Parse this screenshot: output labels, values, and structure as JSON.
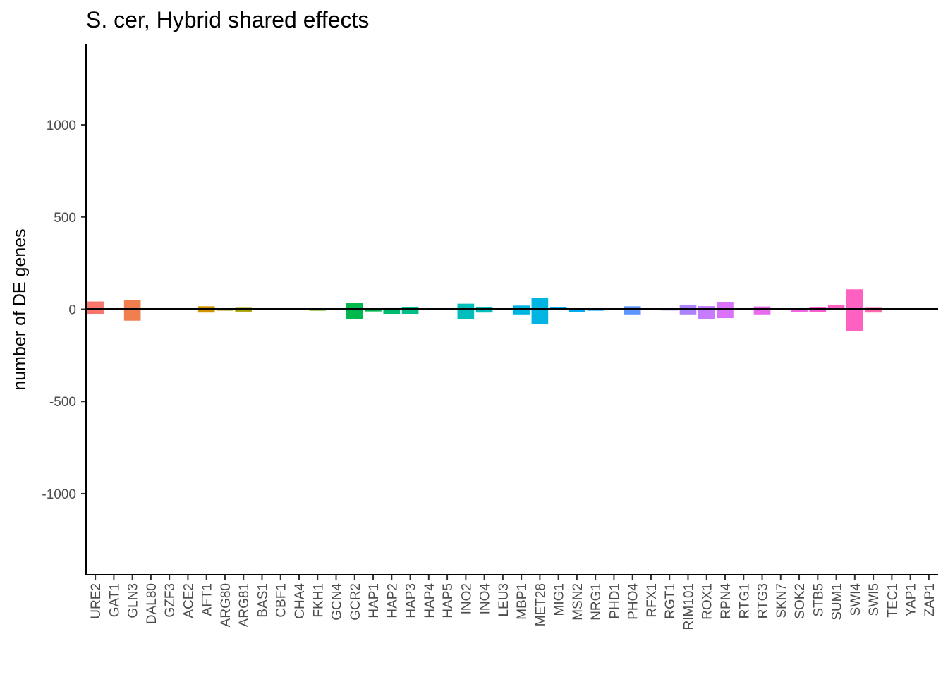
{
  "chart_data": {
    "type": "bar",
    "title": "S. cer, Hybrid shared effects",
    "xlabel": "",
    "ylabel": "number of DE genes",
    "ylim": [
      -1440,
      1440
    ],
    "yticks": [
      -1000,
      -500,
      0,
      500,
      1000
    ],
    "grid": false,
    "legend": "none",
    "categories": [
      "URE2",
      "GAT1",
      "GLN3",
      "DAL80",
      "GZF3",
      "ACE2",
      "AFT1",
      "ARG80",
      "ARG81",
      "BAS1",
      "CBF1",
      "CHA4",
      "FKH1",
      "GCN4",
      "GCR2",
      "HAP1",
      "HAP2",
      "HAP3",
      "HAP4",
      "HAP5",
      "INO2",
      "INO4",
      "LEU3",
      "MBP1",
      "MET28",
      "MIG1",
      "MSN2",
      "NRG1",
      "PHD1",
      "PHO4",
      "RFX1",
      "RGT1",
      "RIM101",
      "ROX1",
      "RPN4",
      "RTG1",
      "RTG3",
      "SKN7",
      "SOK2",
      "STB5",
      "SUM1",
      "SWI4",
      "SWI5",
      "TEC1",
      "YAP1",
      "ZAP1"
    ],
    "series": [
      {
        "values": [
          42,
          0,
          48,
          0,
          3,
          0,
          16,
          4,
          8,
          0,
          0,
          0,
          2,
          0,
          35,
          2,
          6,
          10,
          0,
          0,
          30,
          12,
          0,
          20,
          62,
          10,
          2,
          2,
          0,
          16,
          0,
          3,
          25,
          17,
          40,
          0,
          15,
          3,
          5,
          10,
          25,
          108,
          8,
          0,
          0,
          0
        ]
      },
      {
        "values": [
          -25,
          0,
          -62,
          0,
          0,
          0,
          -18,
          -8,
          -13,
          0,
          0,
          0,
          -8,
          0,
          -52,
          -12,
          -25,
          -25,
          0,
          0,
          -52,
          -18,
          0,
          -28,
          -80,
          -2,
          -15,
          -8,
          0,
          -28,
          0,
          -7,
          -28,
          -52,
          -48,
          0,
          -28,
          0,
          -17,
          -15,
          0,
          -120,
          -18,
          0,
          0,
          0
        ]
      }
    ],
    "colors": [
      "#f8766d",
      "#f07e4f",
      "#e38900",
      "#d39200",
      "#c09b00",
      "#a8a400",
      "#8fad00",
      "#6bb100",
      "#34b536",
      "#00b84e",
      "#00bb6f",
      "#00be8b",
      "#00bfa5",
      "#00bebc",
      "#00bbd0",
      "#00b5e2",
      "#00adf0",
      "#00a3fa",
      "#5f95ff",
      "#8c8bff",
      "#ad82ff",
      "#c77cff",
      "#db72fa",
      "#ea6aee",
      "#f564e3",
      "#fd5dcf",
      "#ff61c3",
      "#ff66b0",
      "#fe6c9c",
      "#fb7387"
    ]
  }
}
